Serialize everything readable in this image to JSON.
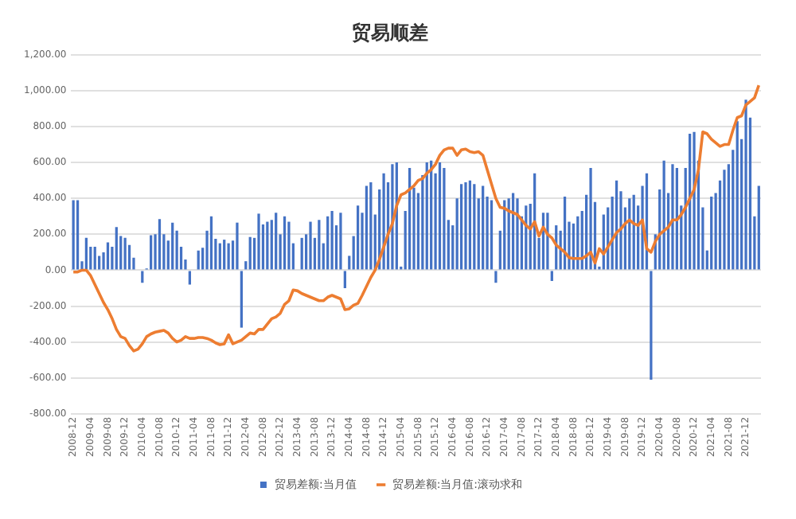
{
  "chart_data": {
    "type": "bar",
    "title": "贸易顺差",
    "categories": [
      "2008-12",
      null,
      null,
      null,
      "2009-04",
      null,
      null,
      null,
      "2009-08",
      null,
      null,
      null,
      "2009-12",
      null,
      null,
      null,
      "2010-04",
      null,
      null,
      null,
      "2010-08",
      null,
      null,
      null,
      "2010-12",
      null,
      null,
      null,
      "2011-04",
      null,
      null,
      null,
      "2011-08",
      null,
      null,
      null,
      "2011-12",
      null,
      null,
      null,
      "2012-04",
      null,
      null,
      null,
      "2012-08",
      null,
      null,
      null,
      "2012-12",
      null,
      null,
      null,
      "2013-04",
      null,
      null,
      null,
      "2013-08",
      null,
      null,
      null,
      "2013-12",
      null,
      null,
      null,
      "2014-04",
      null,
      null,
      null,
      "2014-08",
      null,
      null,
      null,
      "2014-12",
      null,
      null,
      null,
      "2015-04",
      null,
      null,
      null,
      "2015-08",
      null,
      null,
      null,
      "2015-12",
      null,
      null,
      null,
      "2016-04",
      null,
      null,
      null,
      "2016-08",
      null,
      null,
      null,
      "2016-12",
      null,
      null,
      null,
      "2017-04",
      null,
      null,
      null,
      "2017-08",
      null,
      null,
      null,
      "2017-12",
      null,
      null,
      null,
      "2018-04",
      null,
      null,
      null,
      "2018-08",
      null,
      null,
      null,
      "2018-12",
      null,
      null,
      null,
      "2019-04",
      null,
      null,
      null,
      "2019-08",
      null,
      null,
      null,
      "2019-12",
      null,
      null,
      null,
      "2020-04",
      null,
      null,
      null,
      "2020-08",
      null,
      null,
      null,
      "2020-12",
      null,
      null,
      null,
      "2021-04",
      null,
      null,
      null,
      "2021-08",
      null,
      null,
      null,
      "2021-12",
      null,
      null,
      null
    ],
    "series": [
      {
        "name": "贸易差额:当月值",
        "color": "#4472c4",
        "values": [
          390,
          390,
          50,
          180,
          130,
          130,
          80,
          100,
          155,
          130,
          240,
          190,
          180,
          140,
          70,
          0,
          -70,
          10,
          195,
          200,
          285,
          200,
          165,
          265,
          220,
          130,
          60,
          -80,
          0,
          110,
          125,
          220,
          300,
          175,
          150,
          170,
          150,
          165,
          265,
          -320,
          50,
          185,
          180,
          315,
          255,
          270,
          280,
          320,
          200,
          300,
          270,
          150,
          0,
          180,
          200,
          270,
          180,
          280,
          150,
          300,
          330,
          250,
          320,
          -100,
          80,
          190,
          360,
          320,
          470,
          490,
          310,
          450,
          540,
          490,
          590,
          600,
          20,
          330,
          570,
          460,
          430,
          530,
          600,
          610,
          540,
          600,
          570,
          280,
          250,
          400,
          480,
          490,
          500,
          480,
          400,
          470,
          410,
          390,
          -70,
          220,
          390,
          400,
          430,
          400,
          300,
          360,
          370,
          540,
          180,
          320,
          320,
          -60,
          250,
          220,
          410,
          270,
          260,
          300,
          330,
          420,
          570,
          380,
          20,
          310,
          350,
          410,
          500,
          440,
          350,
          400,
          420,
          360,
          470,
          540,
          -610,
          200,
          450,
          610,
          430,
          590,
          570,
          360,
          570,
          760,
          770,
          610,
          350,
          110,
          410,
          430,
          500,
          560,
          590,
          670,
          830,
          730,
          950,
          850,
          300,
          470
        ]
      },
      {
        "name": "贸易差额:当月值:滚动求和",
        "type": "line",
        "color": "#ed7d31",
        "values": [
          -10,
          -10,
          0,
          0,
          -30,
          -80,
          -130,
          -180,
          -220,
          -270,
          -330,
          -370,
          -380,
          -420,
          -450,
          -440,
          -410,
          -370,
          -355,
          -345,
          -340,
          -335,
          -350,
          -380,
          -400,
          -390,
          -370,
          -380,
          -380,
          -375,
          -375,
          -380,
          -390,
          -405,
          -415,
          -410,
          -360,
          -410,
          -400,
          -390,
          -370,
          -350,
          -355,
          -330,
          -330,
          -300,
          -270,
          -260,
          -240,
          -190,
          -170,
          -110,
          -115,
          -130,
          -140,
          -150,
          -160,
          -170,
          -170,
          -150,
          -140,
          -150,
          -160,
          -220,
          -215,
          -195,
          -185,
          -140,
          -90,
          -40,
          0,
          60,
          130,
          200,
          260,
          360,
          420,
          430,
          450,
          470,
          500,
          510,
          540,
          560,
          590,
          640,
          670,
          680,
          680,
          640,
          670,
          675,
          660,
          655,
          660,
          640,
          560,
          480,
          400,
          350,
          345,
          330,
          320,
          310,
          280,
          250,
          230,
          270,
          190,
          240,
          200,
          180,
          140,
          120,
          100,
          70,
          65,
          65,
          65,
          80,
          100,
          40,
          120,
          90,
          130,
          170,
          210,
          230,
          260,
          280,
          260,
          250,
          280,
          120,
          100,
          160,
          200,
          220,
          240,
          280,
          280,
          310,
          350,
          400,
          450,
          560,
          770,
          760,
          730,
          710,
          690,
          700,
          700,
          780,
          850,
          860,
          920,
          940,
          960,
          1030
        ]
      }
    ],
    "ylim": [
      -800,
      1200
    ],
    "yticks": [
      {
        "value": -800,
        "label": "-800.00"
      },
      {
        "value": -600,
        "label": "-600.00"
      },
      {
        "value": -400,
        "label": "-400.00"
      },
      {
        "value": -200,
        "label": "-200.00"
      },
      {
        "value": 0,
        "label": "0.00"
      },
      {
        "value": 200,
        "label": "200.00"
      },
      {
        "value": 400,
        "label": "400.00"
      },
      {
        "value": 600,
        "label": "600.00"
      },
      {
        "value": 800,
        "label": "800.00"
      },
      {
        "value": 1000,
        "label": "1,000.00"
      },
      {
        "value": 1200,
        "label": "1,200.00"
      }
    ],
    "grid": "y",
    "legend": "bottom",
    "marker": "none",
    "line_style": "solid"
  }
}
